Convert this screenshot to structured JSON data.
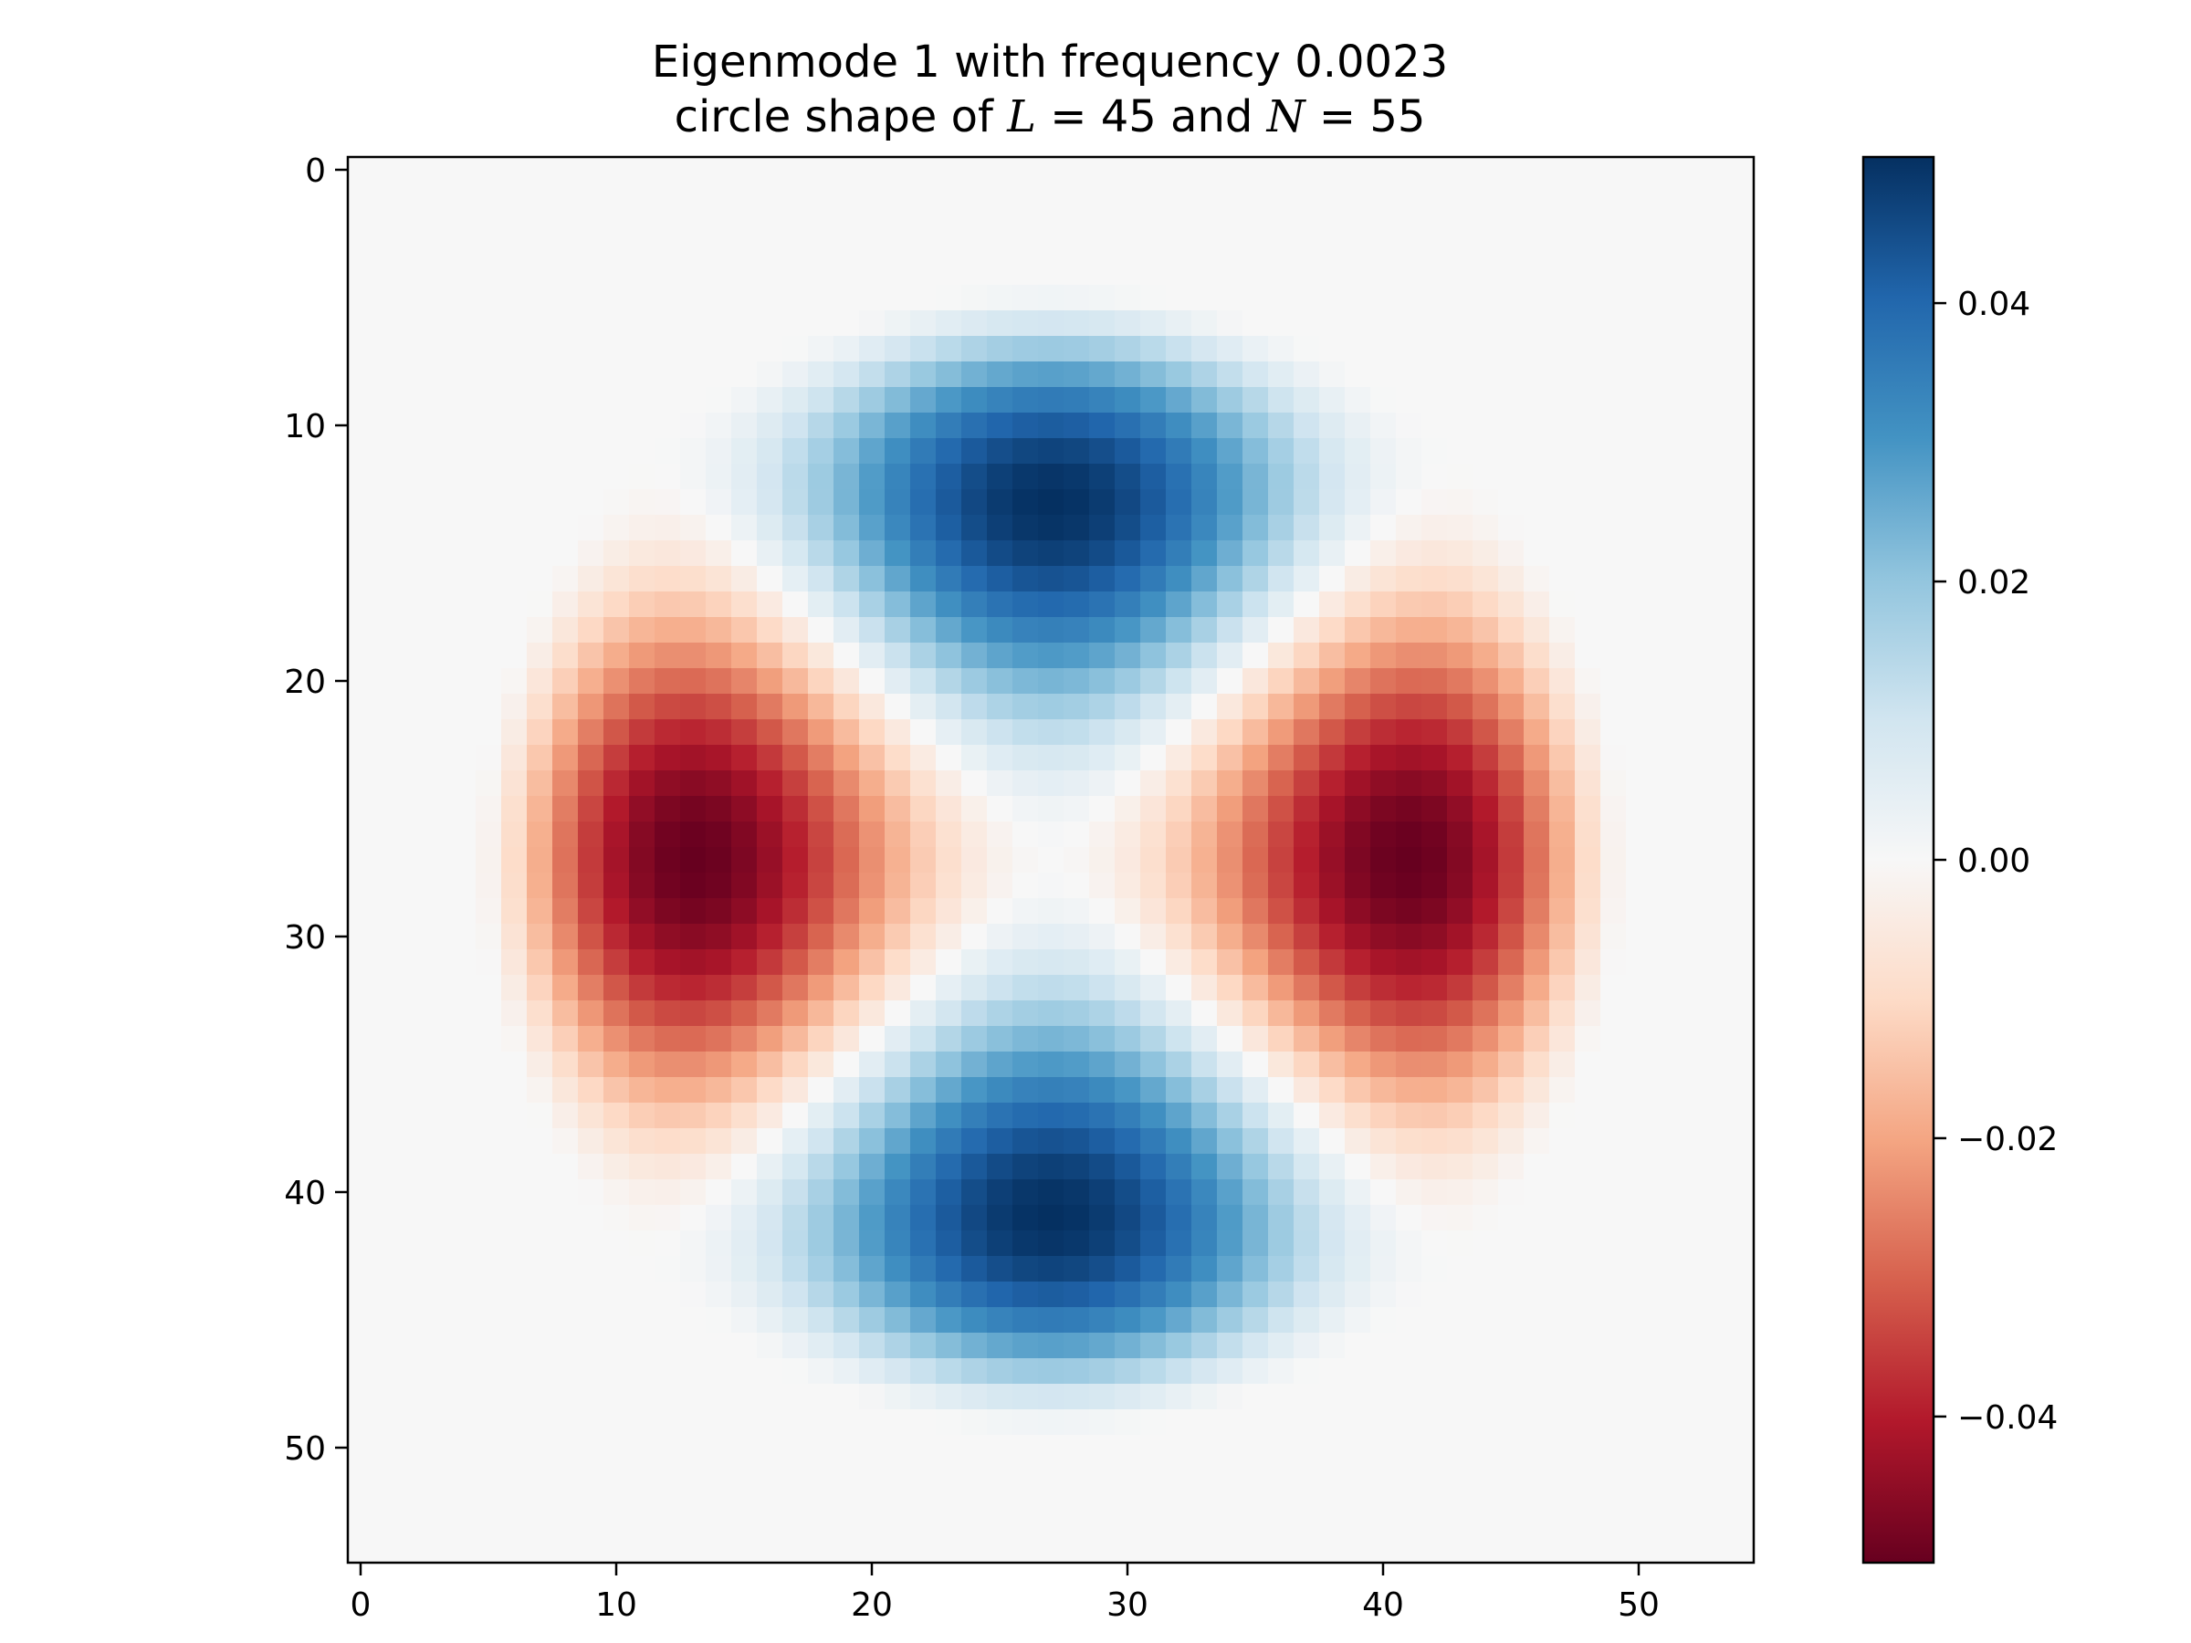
{
  "chart_data": {
    "type": "heatmap",
    "title": {
      "line1": "Eigenmode 1 with frequency 0.0023",
      "line2_prefix": "circle shape of ",
      "line2_var1": "L",
      "line2_eq1": " = 45 and ",
      "line2_var2": "N",
      "line2_eq2": " = 55"
    },
    "grid_size": 55,
    "mode": {
      "form": "radial-lobed standing wave: positive lobes top and bottom, negative lobes left and right",
      "center": [
        27,
        27
      ],
      "radius": 22.5,
      "peak_value": 0.0505
    },
    "x_ticks": [
      0,
      10,
      20,
      30,
      40,
      50
    ],
    "y_ticks": [
      0,
      10,
      20,
      30,
      40,
      50
    ],
    "xlim": [
      -0.5,
      54.5
    ],
    "ylim": [
      54.5,
      -0.5
    ],
    "colorbar": {
      "colormap": "RdBu",
      "vmin": -0.0505,
      "vmax": 0.0505,
      "ticks": [
        0.04,
        0.02,
        0.0,
        -0.02,
        -0.04
      ],
      "tick_labels": [
        "0.04",
        "0.02",
        "0.00",
        "−0.02",
        "−0.04"
      ]
    }
  }
}
